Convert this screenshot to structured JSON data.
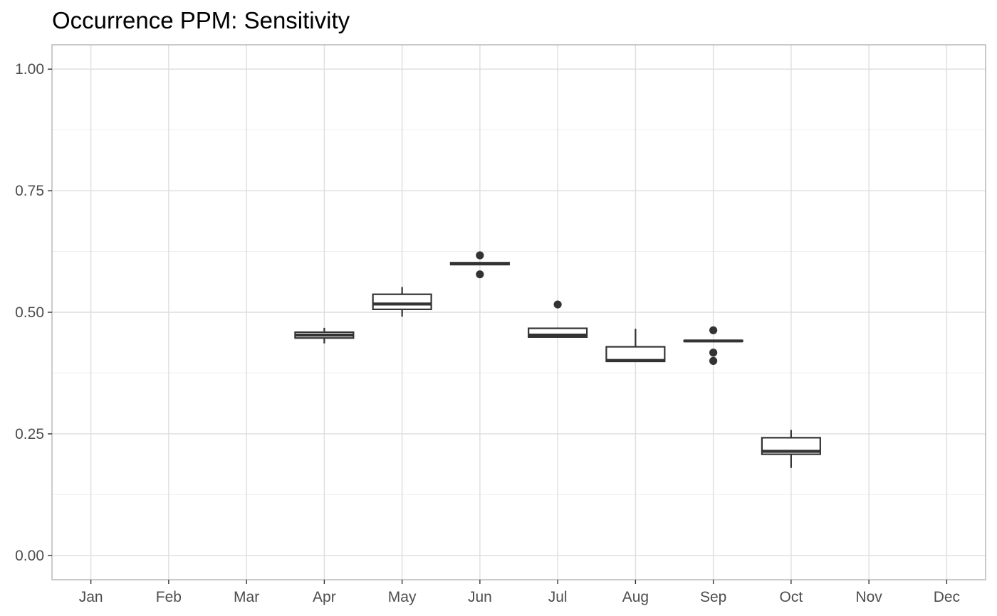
{
  "chart_data": {
    "type": "boxplot",
    "title": "Occurrence PPM: Sensitivity",
    "xlabel": "",
    "ylabel": "",
    "ylim": [
      -0.05,
      1.05
    ],
    "y_ticks": [
      "0.00",
      "0.25",
      "0.50",
      "0.75",
      "1.00"
    ],
    "categories": [
      "Jan",
      "Feb",
      "Mar",
      "Apr",
      "May",
      "Jun",
      "Jul",
      "Aug",
      "Sep",
      "Oct",
      "Nov",
      "Dec"
    ],
    "grid": true,
    "legend": "none",
    "colors": {
      "box": "#333333",
      "grid_major": "#dedede",
      "grid_minor": "#efefef",
      "panel_border": "#b3b3b3"
    },
    "boxes": [
      {
        "category": "Apr",
        "whisker_low": 0.436,
        "q1": 0.447,
        "median": 0.453,
        "q3": 0.459,
        "whisker_high": 0.468,
        "outliers": []
      },
      {
        "category": "May",
        "whisker_low": 0.491,
        "q1": 0.506,
        "median": 0.517,
        "q3": 0.537,
        "whisker_high": 0.552,
        "outliers": []
      },
      {
        "category": "Jun",
        "whisker_low": 0.598,
        "q1": 0.598,
        "median": 0.6,
        "q3": 0.602,
        "whisker_high": 0.602,
        "outliers": [
          0.617,
          0.578
        ]
      },
      {
        "category": "Jul",
        "whisker_low": 0.449,
        "q1": 0.449,
        "median": 0.453,
        "q3": 0.467,
        "whisker_high": 0.467,
        "outliers": [
          0.516
        ]
      },
      {
        "category": "Aug",
        "whisker_low": 0.399,
        "q1": 0.399,
        "median": 0.401,
        "q3": 0.429,
        "whisker_high": 0.466,
        "outliers": []
      },
      {
        "category": "Sep",
        "whisker_low": 0.44,
        "q1": 0.44,
        "median": 0.441,
        "q3": 0.442,
        "whisker_high": 0.442,
        "outliers": [
          0.463,
          0.417,
          0.4
        ]
      },
      {
        "category": "Oct",
        "whisker_low": 0.18,
        "q1": 0.208,
        "median": 0.214,
        "q3": 0.242,
        "whisker_high": 0.258,
        "outliers": []
      }
    ]
  }
}
